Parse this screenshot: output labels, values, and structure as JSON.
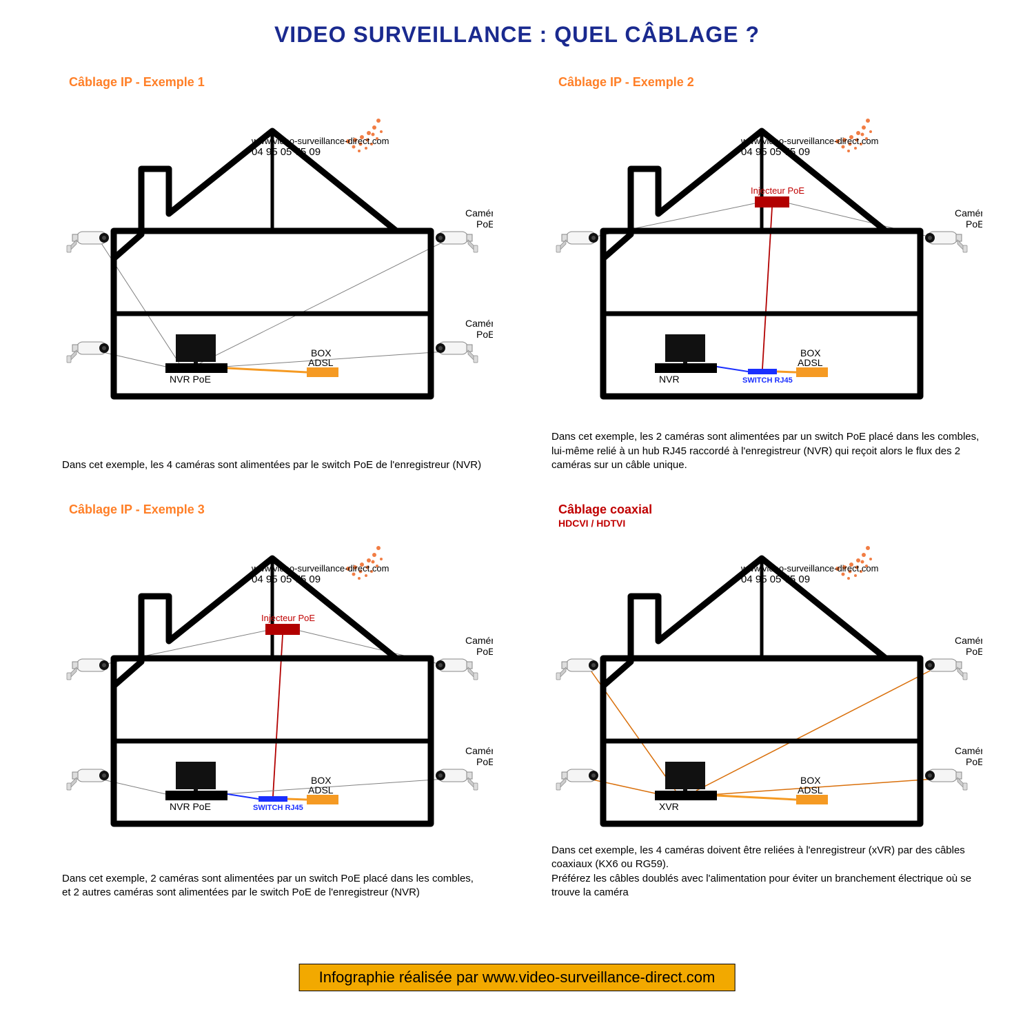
{
  "title": {
    "text": "VIDEO SURVEILLANCE : QUEL CÂBLAGE ?",
    "color": "#1a2a8f",
    "fontsize": 32
  },
  "colors": {
    "title_orange": "#ff7f27",
    "title_red": "#c00000",
    "line_black": "#000000",
    "line_gray": "#808080",
    "line_orange": "#f59a23",
    "line_red": "#b20000",
    "line_blue": "#1a2fff",
    "line_coax": "#d96f0a",
    "house_stroke": "#000000",
    "house_stroke_w": 8,
    "box_adsl": "#f59a23",
    "nvr_fill": "#000000",
    "switch_fill": "#1a2fff",
    "footer_bg": "#f2a900",
    "wm_dots": "#f07030"
  },
  "watermark": {
    "url": "www.video-surveillance-direct.com",
    "phone": "04 95 05 75 09"
  },
  "camera_label": {
    "l1": "Caméra IP",
    "l2": "PoE"
  },
  "devices": {
    "nvr_poe": "NVR PoE",
    "nvr": "NVR",
    "xvr": "XVR",
    "box": "BOX",
    "adsl": "ADSL",
    "switch": "SWITCH RJ45",
    "injector": "Injecteur PoE"
  },
  "panels": [
    {
      "key": "ex1",
      "title": "Câblage IP - Exemple 1",
      "title_color": "#ff7f27",
      "caption": "Dans cet exemple, les 4 caméras sont alimentées par le switch PoE de l'enregistreur (NVR)",
      "config": {
        "cameras": 4,
        "recorder": "nvr_poe",
        "switch": false,
        "injector": false,
        "coax": false
      }
    },
    {
      "key": "ex2",
      "title": "Câblage IP - Exemple 2",
      "title_color": "#ff7f27",
      "caption": "Dans cet exemple, les 2 caméras sont alimentées par un switch PoE placé dans les combles, lui-même relié à un hub RJ45 raccordé à l'enregistreur (NVR) qui reçoit alors le flux des 2 caméras sur un câble unique.",
      "config": {
        "cameras": 2,
        "recorder": "nvr",
        "switch": true,
        "injector": true,
        "coax": false
      }
    },
    {
      "key": "ex3",
      "title": "Câblage IP - Exemple 3",
      "title_color": "#ff7f27",
      "caption": "Dans cet exemple, 2 caméras sont alimentées par un switch PoE placé dans les combles,\net 2 autres caméras sont alimentées par le switch PoE de l'enregistreur (NVR)",
      "config": {
        "cameras": 4,
        "recorder": "nvr_poe",
        "switch": true,
        "injector": true,
        "coax": false
      }
    },
    {
      "key": "ex4",
      "title": "Câblage coaxial",
      "title_color": "#c00000",
      "subtitle": "HDCVI / HDTVI",
      "caption": "Dans cet exemple, les 4 caméras doivent être reliées à l'enregistreur (xVR) par des câbles coaxiaux (KX6 ou RG59).\nPréférez les câbles doublés avec l'alimentation pour éviter un branchement électrique où se trouve la caméra",
      "config": {
        "cameras": 4,
        "recorder": "xvr",
        "switch": false,
        "injector": false,
        "coax": true
      }
    }
  ],
  "footer": "Infographie réalisée par www.video-surveillance-direct.com"
}
